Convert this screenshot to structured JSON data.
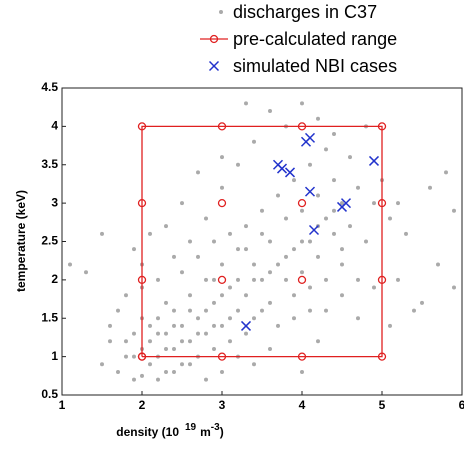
{
  "chart_data": {
    "type": "scatter",
    "xlabel": "density (10",
    "xlabel_exp": "19",
    "xlabel_unit": "m",
    "xlabel_unit_exp": "-3",
    "xlabel_end": ")",
    "ylabel": "temperature (keV)",
    "xlim": [
      1,
      6
    ],
    "xticks": [
      1,
      2,
      3,
      4,
      5,
      6
    ],
    "ylim": [
      0.5,
      4.5
    ],
    "yticks": [
      0.5,
      1,
      1.5,
      2,
      2.5,
      3,
      3.5,
      4,
      4.5
    ],
    "series": [
      {
        "name": "discharges in C37",
        "color": "#aaaaaa",
        "marker": "dot",
        "line": false,
        "x": [
          1.5,
          1.6,
          1.7,
          1.8,
          1.9,
          1.9,
          2.0,
          2.1,
          2.1,
          2.2,
          2.2,
          2.3,
          2.3,
          2.4,
          2.4,
          2.5,
          2.5,
          2.6,
          2.6,
          2.7,
          2.7,
          2.8,
          2.8,
          2.9,
          2.9,
          3.0,
          3.0,
          3.1,
          3.1,
          3.2,
          3.2,
          3.3,
          3.3,
          3.4,
          3.4,
          3.5,
          3.5,
          3.6,
          3.6,
          3.7,
          3.7,
          3.8,
          3.8,
          3.9,
          3.9,
          4.0,
          4.0,
          4.1,
          4.1,
          4.2,
          4.2,
          4.3,
          4.3,
          4.4,
          4.4,
          4.5,
          4.5,
          4.6,
          4.7,
          4.8,
          4.9,
          5.1,
          5.2,
          5.3,
          5.5,
          5.6,
          5.8,
          5.9,
          1.3,
          1.5,
          1.8,
          2.0,
          2.2,
          2.4,
          2.6,
          2.8,
          3.0,
          3.2,
          3.4,
          3.6,
          3.8,
          4.0,
          4.2,
          4.4,
          4.6,
          4.8,
          3.3,
          3.0,
          2.7,
          2.5,
          2.3,
          2.1,
          1.9,
          1.7,
          1.6,
          2.0,
          2.3,
          2.5,
          2.7,
          2.9,
          3.1,
          3.3,
          3.5,
          3.9,
          4.1,
          4.3,
          4.5,
          4.7,
          4.9,
          5.1,
          5.4,
          4.2,
          4.0,
          3.6,
          3.4,
          3.2,
          3.0,
          2.8,
          2.6,
          2.4,
          2.2,
          2.0,
          1.8,
          2.1,
          2.3,
          2.5,
          2.7,
          2.9,
          3.1,
          3.3,
          3.5,
          3.7,
          3.9,
          4.1,
          4.3,
          4.5,
          4.7,
          2.9,
          2.6,
          2.4,
          2.2,
          2.0,
          1.9,
          2.8,
          3.0,
          3.2,
          3.4,
          3.6,
          3.8,
          4.0,
          4.2,
          4.4,
          5.0,
          5.2,
          5.7,
          5.9,
          1.1
        ],
        "values": [
          0.9,
          1.2,
          0.8,
          1.0,
          0.7,
          1.3,
          0.75,
          0.9,
          1.2,
          1.0,
          1.5,
          0.8,
          1.3,
          1.1,
          1.6,
          0.9,
          1.4,
          1.2,
          1.8,
          1.0,
          1.5,
          1.3,
          2.0,
          1.1,
          1.7,
          1.4,
          2.2,
          1.2,
          1.9,
          1.6,
          2.4,
          1.8,
          2.7,
          1.5,
          2.2,
          2.0,
          2.9,
          1.7,
          2.5,
          2.2,
          3.1,
          2.0,
          2.8,
          2.4,
          3.3,
          2.1,
          2.9,
          2.5,
          3.5,
          2.3,
          3.1,
          2.8,
          3.7,
          2.6,
          3.3,
          2.2,
          3.0,
          2.7,
          3.2,
          2.5,
          3.0,
          2.8,
          2.0,
          2.6,
          1.7,
          3.2,
          3.4,
          2.9,
          2.1,
          2.6,
          1.8,
          2.2,
          2.0,
          2.3,
          2.5,
          2.8,
          3.2,
          3.5,
          3.8,
          4.2,
          4.0,
          4.3,
          4.1,
          3.9,
          3.6,
          4.0,
          4.3,
          3.6,
          3.4,
          3.0,
          2.7,
          2.6,
          2.4,
          1.6,
          1.4,
          1.9,
          1.7,
          2.1,
          2.3,
          2.5,
          2.6,
          2.4,
          2.6,
          1.8,
          1.9,
          1.6,
          1.8,
          1.5,
          1.9,
          1.4,
          1.6,
          1.2,
          0.8,
          1.1,
          0.9,
          1.0,
          0.8,
          0.7,
          0.9,
          0.8,
          0.7,
          1.1,
          1.2,
          1.4,
          1.1,
          1.2,
          1.3,
          1.4,
          1.5,
          1.3,
          1.6,
          1.4,
          1.5,
          1.6,
          2.0,
          2.4,
          2.0,
          2.0,
          1.6,
          1.4,
          1.3,
          1.5,
          1.0,
          1.6,
          1.8,
          2.0,
          2.0,
          2.1,
          2.3,
          2.5,
          2.7,
          2.9,
          3.3,
          3.0,
          2.2,
          1.9,
          2.2
        ]
      },
      {
        "name": "pre-calculated range",
        "color": "#e02020",
        "marker": "circle",
        "line": true,
        "x": [
          2,
          3,
          4,
          5,
          5,
          5,
          5,
          4,
          3,
          2,
          2,
          2,
          2,
          null,
          3,
          null,
          4,
          null,
          3,
          null,
          4
        ],
        "values": [
          1,
          1,
          1,
          1,
          2,
          3,
          4,
          4,
          4,
          4,
          3,
          2,
          1,
          null,
          2,
          null,
          2,
          null,
          3,
          null,
          3
        ]
      },
      {
        "name": "simulated NBI cases",
        "color": "#2233cc",
        "marker": "x",
        "line": false,
        "x": [
          3.3,
          3.7,
          3.75,
          3.85,
          4.05,
          4.1,
          4.1,
          4.15,
          4.5,
          4.55,
          4.9
        ],
        "values": [
          1.4,
          3.5,
          3.45,
          3.4,
          3.8,
          3.85,
          3.15,
          2.65,
          2.95,
          3.0,
          3.55
        ]
      }
    ]
  }
}
